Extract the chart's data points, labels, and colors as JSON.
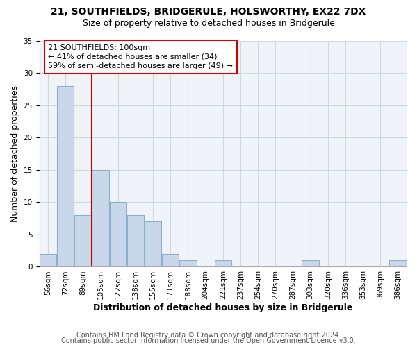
{
  "title_line1": "21, SOUTHFIELDS, BRIDGERULE, HOLSWORTHY, EX22 7DX",
  "title_line2": "Size of property relative to detached houses in Bridgerule",
  "xlabel": "Distribution of detached houses by size in Bridgerule",
  "ylabel": "Number of detached properties",
  "bin_labels": [
    "56sqm",
    "72sqm",
    "89sqm",
    "105sqm",
    "122sqm",
    "138sqm",
    "155sqm",
    "171sqm",
    "188sqm",
    "204sqm",
    "221sqm",
    "237sqm",
    "254sqm",
    "270sqm",
    "287sqm",
    "303sqm",
    "320sqm",
    "336sqm",
    "353sqm",
    "369sqm",
    "386sqm"
  ],
  "bar_heights": [
    2,
    28,
    8,
    15,
    10,
    8,
    7,
    2,
    1,
    0,
    1,
    0,
    0,
    0,
    0,
    1,
    0,
    0,
    0,
    0,
    1
  ],
  "bar_color": "#c8d8ea",
  "bar_edge_color": "#8ab0cc",
  "vline_color": "#cc0000",
  "annotation_line1": "21 SOUTHFIELDS: 100sqm",
  "annotation_line2": "← 41% of detached houses are smaller (34)",
  "annotation_line3": "59% of semi-detached houses are larger (49) →",
  "annotation_box_color": "white",
  "annotation_box_edge": "#cc0000",
  "ylim": [
    0,
    35
  ],
  "yticks": [
    0,
    5,
    10,
    15,
    20,
    25,
    30,
    35
  ],
  "footer_line1": "Contains HM Land Registry data © Crown copyright and database right 2024.",
  "footer_line2": "Contains public sector information licensed under the Open Government Licence v3.0.",
  "grid_color": "#ccdae6",
  "background_color": "#f0f4f8",
  "title_fontsize": 10,
  "subtitle_fontsize": 9,
  "label_fontsize": 9,
  "tick_fontsize": 7.5,
  "annotation_fontsize": 8,
  "footer_fontsize": 7
}
